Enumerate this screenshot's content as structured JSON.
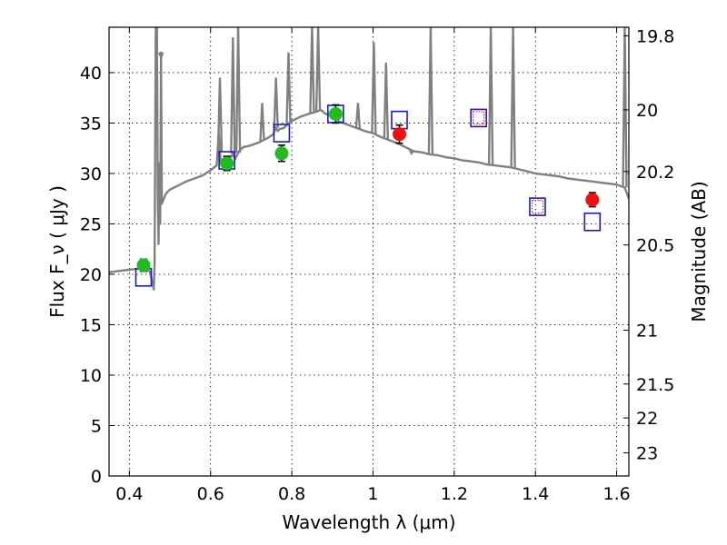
{
  "chart_data": {
    "type": "scatter",
    "title": "",
    "xlabel": "Wavelength  λ (μm)",
    "ylabel": "Flux  F_ν  ( μJy )",
    "ylabel_right": "Magnitude (AB)",
    "xlim": [
      0.35,
      1.63
    ],
    "ylim": [
      0,
      44.5
    ],
    "grid": true,
    "x_ticks": [
      {
        "value": 0.4,
        "label": "0.4"
      },
      {
        "value": 0.6,
        "label": "0.6"
      },
      {
        "value": 0.8,
        "label": "0.8"
      },
      {
        "value": 1.0,
        "label": "1"
      },
      {
        "value": 1.2,
        "label": "1.2"
      },
      {
        "value": 1.4,
        "label": "1.4"
      },
      {
        "value": 1.6,
        "label": "1.6"
      }
    ],
    "y_ticks": [
      {
        "value": 0,
        "label": "0"
      },
      {
        "value": 5,
        "label": "5"
      },
      {
        "value": 10,
        "label": "10"
      },
      {
        "value": 15,
        "label": "15"
      },
      {
        "value": 20,
        "label": "20"
      },
      {
        "value": 25,
        "label": "25"
      },
      {
        "value": 30,
        "label": "30"
      },
      {
        "value": 35,
        "label": "35"
      },
      {
        "value": 40,
        "label": "40"
      }
    ],
    "right_ticks": [
      {
        "mag": 19.8,
        "label": "19.8"
      },
      {
        "mag": 20,
        "label": "20"
      },
      {
        "mag": 20.2,
        "label": "20.2"
      },
      {
        "mag": 20.5,
        "label": "20.5"
      },
      {
        "mag": 21,
        "label": "21"
      },
      {
        "mag": 21.5,
        "label": "21.5"
      },
      {
        "mag": 22,
        "label": "22"
      },
      {
        "mag": 23,
        "label": "23"
      }
    ],
    "colors": {
      "model_spectrum": "#808080",
      "optical_points": "#22bb22",
      "nir_points": "#ee1111",
      "model_squares": "#1a1acc",
      "model_squares_alt": "#ff0000",
      "errorbar": "#000000"
    },
    "series": [
      {
        "kind": "model_spectrum",
        "x": [
          0.35,
          0.37,
          0.39,
          0.41,
          0.43,
          0.45,
          0.455,
          0.46,
          0.462,
          0.465,
          0.468,
          0.47,
          0.472,
          0.474,
          0.476,
          0.478,
          0.48,
          0.485,
          0.49,
          0.5,
          0.52,
          0.54,
          0.56,
          0.58,
          0.6,
          0.615,
          0.62,
          0.625,
          0.63,
          0.64,
          0.65,
          0.655,
          0.66,
          0.665,
          0.67,
          0.68,
          0.7,
          0.72,
          0.74,
          0.755,
          0.76,
          0.765,
          0.77,
          0.78,
          0.79,
          0.8,
          0.82,
          0.84,
          0.86,
          0.87,
          0.875,
          0.88,
          0.89,
          0.9,
          0.91,
          0.92,
          0.94,
          0.96,
          0.98,
          1.0,
          1.02,
          1.04,
          1.06,
          1.07,
          1.08,
          1.09,
          1.1,
          1.12,
          1.14,
          1.16,
          1.18,
          1.2,
          1.22,
          1.24,
          1.26,
          1.28,
          1.3,
          1.32,
          1.34,
          1.36,
          1.38,
          1.4,
          1.42,
          1.44,
          1.46,
          1.48,
          1.5,
          1.52,
          1.54,
          1.56,
          1.58,
          1.6,
          1.62,
          1.63
        ],
        "y": [
          20.2,
          20.3,
          20.4,
          20.5,
          20.6,
          20.3,
          19.5,
          18.5,
          21,
          44.5,
          44.5,
          28,
          23,
          31,
          25,
          42,
          27,
          27.5,
          28,
          28.4,
          28.8,
          29.2,
          29.5,
          29.8,
          30.3,
          30.8,
          34,
          31,
          31.2,
          31.5,
          31.6,
          32,
          31.4,
          31.8,
          32.2,
          32.6,
          32.8,
          33.1,
          33.5,
          33.9,
          34.6,
          34.2,
          34.4,
          34.5,
          34.9,
          35.2,
          35.6,
          35.9,
          36.1,
          36.3,
          36.2,
          36,
          35.8,
          35.6,
          35.3,
          35.1,
          34.8,
          34.5,
          34.2,
          34,
          33.6,
          33.3,
          33,
          32.8,
          32.6,
          32.4,
          32.2,
          32.1,
          31.9,
          31.8,
          31.6,
          31.5,
          31.3,
          31.2,
          31.1,
          30.9,
          30.8,
          30.7,
          30.6,
          30.4,
          30.2,
          30,
          29.9,
          29.8,
          29.7,
          29.5,
          29.4,
          29.3,
          29.2,
          29.1,
          29,
          28.9,
          28.6,
          27.5
        ]
      },
      {
        "kind": "model_spikes",
        "x": [
          0.468,
          0.478,
          0.623,
          0.655,
          0.668,
          0.727,
          0.761,
          0.792,
          0.85,
          0.865,
          0.963,
          1.002,
          1.032,
          1.095,
          1.142,
          1.29,
          1.345,
          1.62
        ],
        "y": [
          44.5,
          41.5,
          39.5,
          43.5,
          44.5,
          37.0,
          39.5,
          42.0,
          44.5,
          44.5,
          37.0,
          43.0,
          41.0,
          32.0,
          44.5,
          44.5,
          44.5,
          44.5
        ]
      },
      {
        "kind": "optical_points",
        "x": [
          0.435,
          0.64,
          0.775,
          0.908
        ],
        "y": [
          20.9,
          31.0,
          32.0,
          35.9
        ],
        "yerr": [
          0.6,
          0.7,
          0.8,
          0.9
        ]
      },
      {
        "kind": "nir_points",
        "x": [
          1.065,
          1.54
        ],
        "y": [
          33.9,
          27.4
        ],
        "yerr": [
          0.9,
          0.7
        ]
      },
      {
        "kind": "model_squares",
        "x": [
          0.435,
          0.64,
          0.775,
          0.908,
          1.065,
          1.26,
          1.405,
          1.54
        ],
        "y": [
          19.7,
          31.3,
          34.0,
          35.9,
          35.3,
          35.5,
          26.7,
          25.2
        ]
      },
      {
        "kind": "model_squares_alt",
        "x": [
          1.26,
          1.405
        ],
        "y": [
          35.5,
          26.7
        ]
      }
    ]
  }
}
